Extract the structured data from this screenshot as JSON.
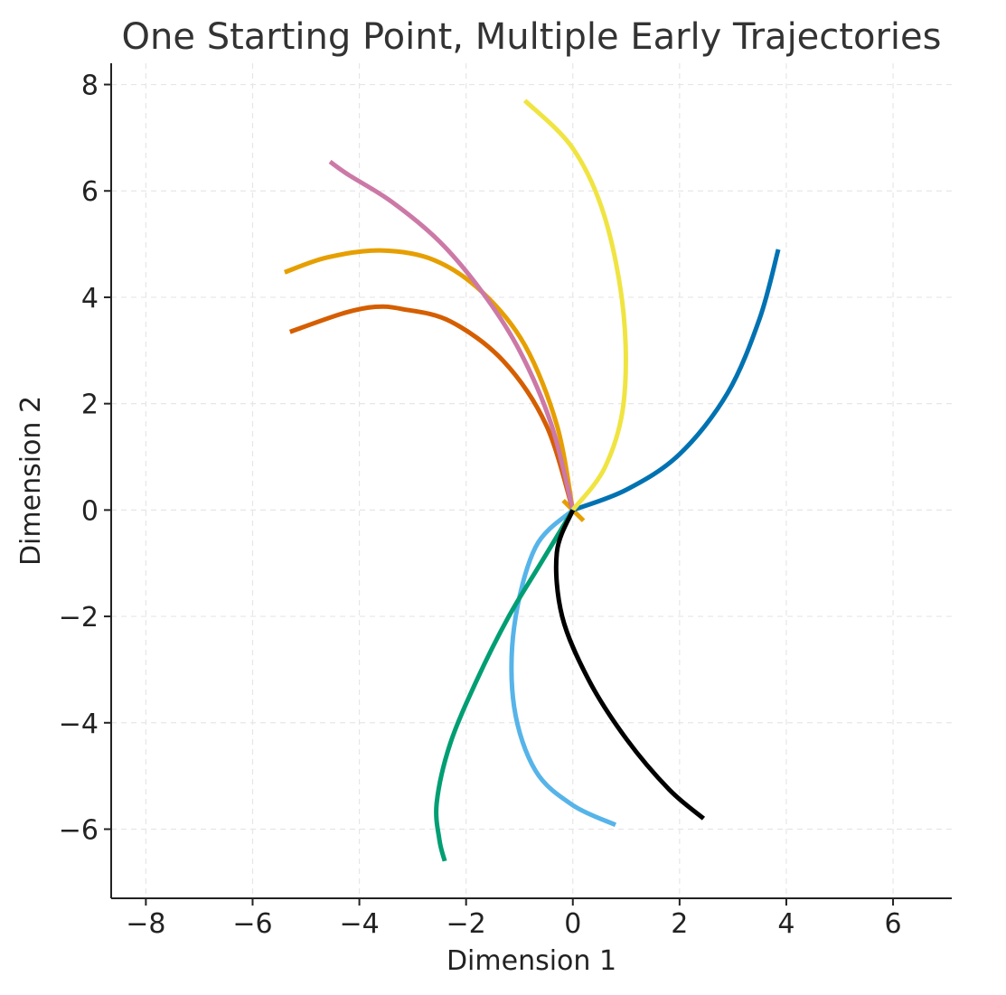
{
  "chart_data": {
    "type": "line",
    "title": "One Starting Point, Multiple Early Trajectories",
    "xlabel": "Dimension 1",
    "ylabel": "Dimension 2",
    "xlim": [
      -8.65,
      7.1
    ],
    "ylim": [
      -7.3,
      8.4
    ],
    "xticks": [
      -8,
      -6,
      -4,
      -2,
      0,
      2,
      4,
      6
    ],
    "yticks": [
      -6,
      -4,
      -2,
      0,
      2,
      4,
      6,
      8
    ],
    "xtick_labels": [
      "−8",
      "−6",
      "−4",
      "−2",
      "0",
      "2",
      "4",
      "6"
    ],
    "ytick_labels": [
      "−6",
      "−4",
      "−2",
      "0",
      "2",
      "4",
      "6",
      "8"
    ],
    "grid": true,
    "series": [
      {
        "color": "#0072B2",
        "points": [
          [
            0,
            0
          ],
          [
            1.0,
            0.38
          ],
          [
            2.0,
            1.05
          ],
          [
            2.9,
            2.2
          ],
          [
            3.5,
            3.6
          ],
          [
            3.85,
            4.9
          ]
        ]
      },
      {
        "color": "#E69F00",
        "points": [
          [
            0,
            0
          ],
          [
            -0.3,
            1.6
          ],
          [
            -0.9,
            3.1
          ],
          [
            -1.7,
            4.1
          ],
          [
            -2.6,
            4.7
          ],
          [
            -3.6,
            4.88
          ],
          [
            -4.6,
            4.75
          ],
          [
            -5.4,
            4.47
          ]
        ]
      },
      {
        "color": "#D55E00",
        "points": [
          [
            0,
            0
          ],
          [
            -0.5,
            1.6
          ],
          [
            -1.3,
            2.8
          ],
          [
            -2.3,
            3.55
          ],
          [
            -3.2,
            3.78
          ],
          [
            -3.7,
            3.82
          ],
          [
            -4.3,
            3.7
          ],
          [
            -5.3,
            3.35
          ]
        ]
      },
      {
        "color": "#CC79A7",
        "points": [
          [
            0,
            0
          ],
          [
            -0.4,
            1.6
          ],
          [
            -1.0,
            3.0
          ],
          [
            -1.7,
            4.1
          ],
          [
            -2.5,
            5.05
          ],
          [
            -3.4,
            5.8
          ],
          [
            -4.2,
            6.3
          ],
          [
            -4.55,
            6.55
          ]
        ]
      },
      {
        "color": "#F0E442",
        "points": [
          [
            0,
            0
          ],
          [
            0.6,
            0.8
          ],
          [
            0.95,
            2.0
          ],
          [
            0.95,
            3.7
          ],
          [
            0.6,
            5.5
          ],
          [
            0.0,
            6.8
          ],
          [
            -0.9,
            7.7
          ]
        ]
      },
      {
        "color": "#56B4E9",
        "points": [
          [
            0,
            0
          ],
          [
            -0.7,
            -0.7
          ],
          [
            -1.1,
            -2.2
          ],
          [
            -1.1,
            -3.7
          ],
          [
            -0.7,
            -4.9
          ],
          [
            0,
            -5.55
          ],
          [
            0.8,
            -5.92
          ]
        ]
      },
      {
        "color": "#009E73",
        "points": [
          [
            0,
            0
          ],
          [
            -0.6,
            -1.0
          ],
          [
            -1.2,
            -2.0
          ],
          [
            -1.8,
            -3.2
          ],
          [
            -2.3,
            -4.4
          ],
          [
            -2.55,
            -5.5
          ],
          [
            -2.5,
            -6.2
          ],
          [
            -2.4,
            -6.6
          ]
        ]
      },
      {
        "color": "#000000",
        "points": [
          [
            0,
            0
          ],
          [
            -0.3,
            -0.8
          ],
          [
            -0.2,
            -2.0
          ],
          [
            0.3,
            -3.2
          ],
          [
            1.0,
            -4.3
          ],
          [
            1.8,
            -5.25
          ],
          [
            2.45,
            -5.8
          ]
        ]
      }
    ],
    "annotations": [
      {
        "color": "#E69F00",
        "points": [
          [
            -0.18,
            0.18
          ],
          [
            0.2,
            -0.2
          ]
        ]
      }
    ]
  }
}
